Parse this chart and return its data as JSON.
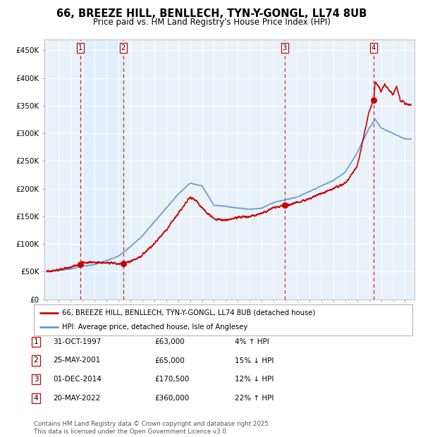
{
  "title": "66, BREEZE HILL, BENLLECH, TYN-Y-GONGL, LL74 8UB",
  "subtitle": "Price paid vs. HM Land Registry's House Price Index (HPI)",
  "ylabel_ticks": [
    "£0",
    "£50K",
    "£100K",
    "£150K",
    "£200K",
    "£250K",
    "£300K",
    "£350K",
    "£400K",
    "£450K"
  ],
  "ytick_vals": [
    0,
    50000,
    100000,
    150000,
    200000,
    250000,
    300000,
    350000,
    400000,
    450000
  ],
  "ylim": [
    0,
    470000
  ],
  "xlim_start": 1994.8,
  "xlim_end": 2025.8,
  "sale_dates": [
    1997.83,
    2001.4,
    2014.92,
    2022.38
  ],
  "sale_prices": [
    63000,
    65000,
    170500,
    360000
  ],
  "sale_labels": [
    "1",
    "2",
    "3",
    "4"
  ],
  "legend_line1": "66, BREEZE HILL, BENLLECH, TYN-Y-GONGL, LL74 8UB (detached house)",
  "legend_line2": "HPI: Average price, detached house, Isle of Anglesey",
  "table_rows": [
    [
      "1",
      "31-OCT-1997",
      "£63,000",
      "4% ↑ HPI"
    ],
    [
      "2",
      "25-MAY-2001",
      "£65,000",
      "15% ↓ HPI"
    ],
    [
      "3",
      "01-DEC-2014",
      "£170,500",
      "12% ↓ HPI"
    ],
    [
      "4",
      "20-MAY-2022",
      "£360,000",
      "22% ↑ HPI"
    ]
  ],
  "footer": "Contains HM Land Registry data © Crown copyright and database right 2025.\nThis data is licensed under the Open Government Licence v3.0.",
  "red_color": "#cc0000",
  "blue_line_color": "#6699cc",
  "shade_color": "#ddeeff",
  "plot_bg": "#e8f0f8",
  "grid_color": "#cccccc",
  "title_fontsize": 10.5,
  "subtitle_fontsize": 8.5
}
